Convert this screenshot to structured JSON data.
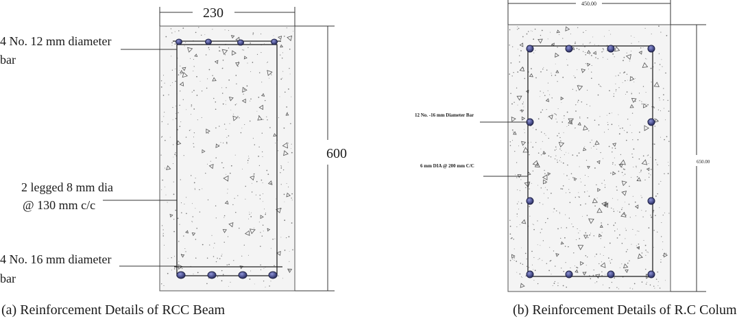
{
  "beam": {
    "width_label": "230",
    "depth_label": "600",
    "top_bar_label_line1": "4 No. 12 mm diameter",
    "top_bar_label_line2": "bar",
    "stirrup_label_line1": "2 legged 8 mm dia",
    "stirrup_label_line2": "@ 130 mm c/c",
    "bottom_bar_label_line1": "4 No. 16 mm diameter",
    "bottom_bar_label_line2": "bar",
    "caption": "(a) Reinforcement Details of RCC Beam"
  },
  "column": {
    "width_label": "450.00",
    "depth_label": "650.00",
    "main_bar_label": "12 No. -16 mm Diameter Bar",
    "tie_label": "6 mm DIA @ 200 mm C/C",
    "caption": "(b) Reinforcement Details of R.C Column"
  },
  "colors": {
    "rebar_fill": "#4a4f8c",
    "concrete_bg": "#f4f4f4",
    "line": "#222222"
  }
}
